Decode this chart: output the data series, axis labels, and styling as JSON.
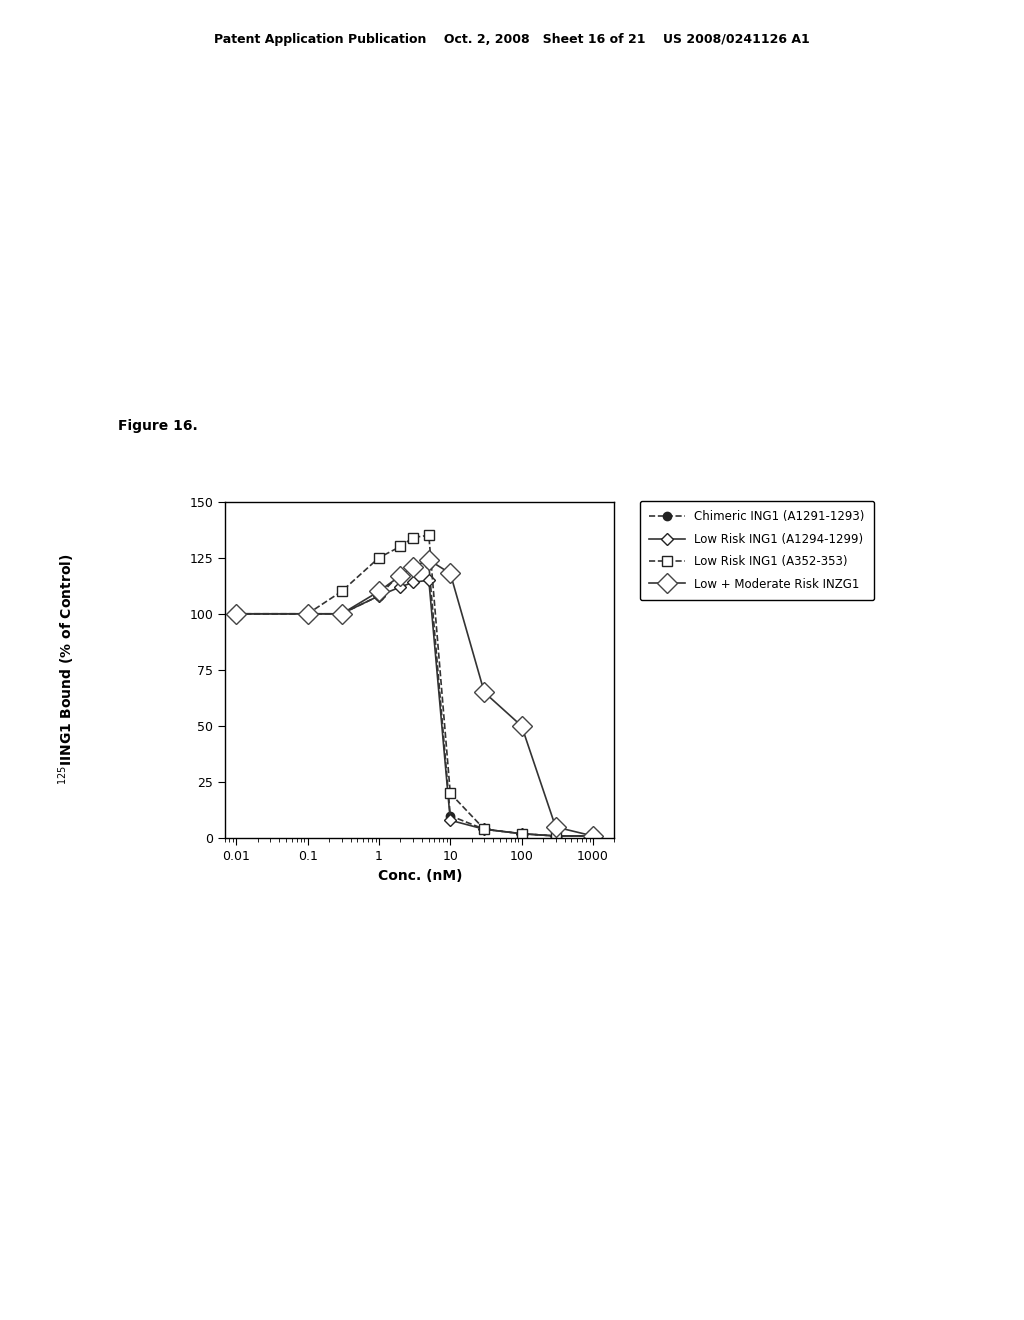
{
  "title_header": "Patent Application Publication    Oct. 2, 2008   Sheet 16 of 21    US 2008/0241126 A1",
  "figure_label": "Figure 16.",
  "xlabel": "Conc. (nM)",
  "ylabel_superscript": "$^{125}$IING1 Bound (% of Control)",
  "ylim": [
    0,
    150
  ],
  "yticks": [
    0,
    25,
    50,
    75,
    100,
    125,
    150
  ],
  "series": [
    {
      "name": "Chimeric ING1 (A1291-1293)",
      "x": [
        0.01,
        0.1,
        0.3,
        1,
        2,
        3,
        5,
        10,
        30,
        100,
        300,
        1000
      ],
      "y": [
        100,
        100,
        100,
        108,
        118,
        121,
        122,
        10,
        4,
        2,
        1,
        1
      ],
      "marker": "o",
      "mfc": "#222222",
      "mec": "#222222",
      "ls": "--",
      "ms": 6
    },
    {
      "name": "Low Risk ING1 (A1294-1299)",
      "x": [
        0.01,
        0.1,
        0.3,
        1,
        2,
        3,
        5,
        10,
        30,
        100,
        300,
        1000
      ],
      "y": [
        100,
        100,
        100,
        108,
        112,
        114,
        115,
        8,
        4,
        2,
        1,
        1
      ],
      "marker": "D",
      "mfc": "white",
      "mec": "#222222",
      "ls": "-",
      "ms": 6
    },
    {
      "name": "Low Risk ING1 (A352-353)",
      "x": [
        0.01,
        0.1,
        0.3,
        1,
        2,
        3,
        5,
        10,
        30,
        100,
        300,
        1000
      ],
      "y": [
        100,
        100,
        110,
        125,
        130,
        134,
        135,
        20,
        4,
        2,
        1,
        1
      ],
      "marker": "s",
      "mfc": "white",
      "mec": "#222222",
      "ls": "--",
      "ms": 7
    },
    {
      "name": "Low + Moderate Risk INZG1",
      "x": [
        0.01,
        0.1,
        0.3,
        1,
        2,
        3,
        5,
        10,
        30,
        100,
        300,
        1000
      ],
      "y": [
        100,
        100,
        100,
        110,
        117,
        121,
        124,
        118,
        65,
        50,
        5,
        1
      ],
      "marker": "D",
      "mfc": "white",
      "mec": "#444444",
      "ls": "-",
      "ms": 10
    }
  ],
  "background_color": "#ffffff",
  "font_color": "#000000",
  "fontsize_header": 9,
  "fontsize_axis_label": 10,
  "fontsize_tick": 9,
  "fontsize_legend": 8.5,
  "fontsize_figure_label": 10
}
